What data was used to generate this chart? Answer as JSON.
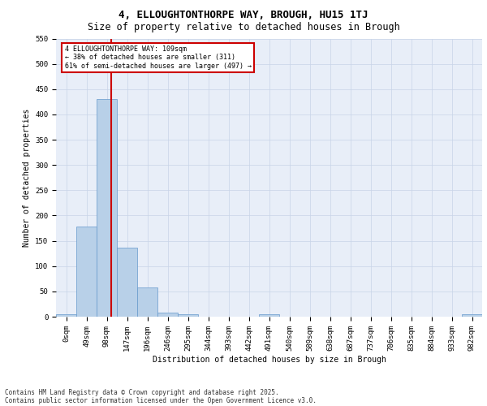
{
  "title1": "4, ELLOUGHTONTHORPE WAY, BROUGH, HU15 1TJ",
  "title2": "Size of property relative to detached houses in Brough",
  "xlabel": "Distribution of detached houses by size in Brough",
  "ylabel": "Number of detached properties",
  "bin_labels": [
    "0sqm",
    "49sqm",
    "98sqm",
    "147sqm",
    "196sqm",
    "246sqm",
    "295sqm",
    "344sqm",
    "393sqm",
    "442sqm",
    "491sqm",
    "540sqm",
    "589sqm",
    "638sqm",
    "687sqm",
    "737sqm",
    "786sqm",
    "835sqm",
    "884sqm",
    "933sqm",
    "982sqm"
  ],
  "bar_values": [
    5,
    178,
    430,
    136,
    58,
    8,
    5,
    0,
    0,
    0,
    5,
    0,
    0,
    0,
    0,
    0,
    0,
    0,
    0,
    0,
    5
  ],
  "bar_color": "#b8d0e8",
  "bar_edge_color": "#6699cc",
  "vline_color": "#cc0000",
  "annotation_text": "4 ELLOUGHTONTHORPE WAY: 109sqm\n← 38% of detached houses are smaller (311)\n61% of semi-detached houses are larger (497) →",
  "annotation_box_color": "#cc0000",
  "ylim": [
    0,
    550
  ],
  "yticks": [
    0,
    50,
    100,
    150,
    200,
    250,
    300,
    350,
    400,
    450,
    500,
    550
  ],
  "grid_color": "#c8d4e8",
  "bg_color": "#e8eef8",
  "footnote1": "Contains HM Land Registry data © Crown copyright and database right 2025.",
  "footnote2": "Contains public sector information licensed under the Open Government Licence v3.0.",
  "title1_fontsize": 9,
  "title2_fontsize": 8.5,
  "axis_fontsize": 7,
  "tick_fontsize": 6.5
}
